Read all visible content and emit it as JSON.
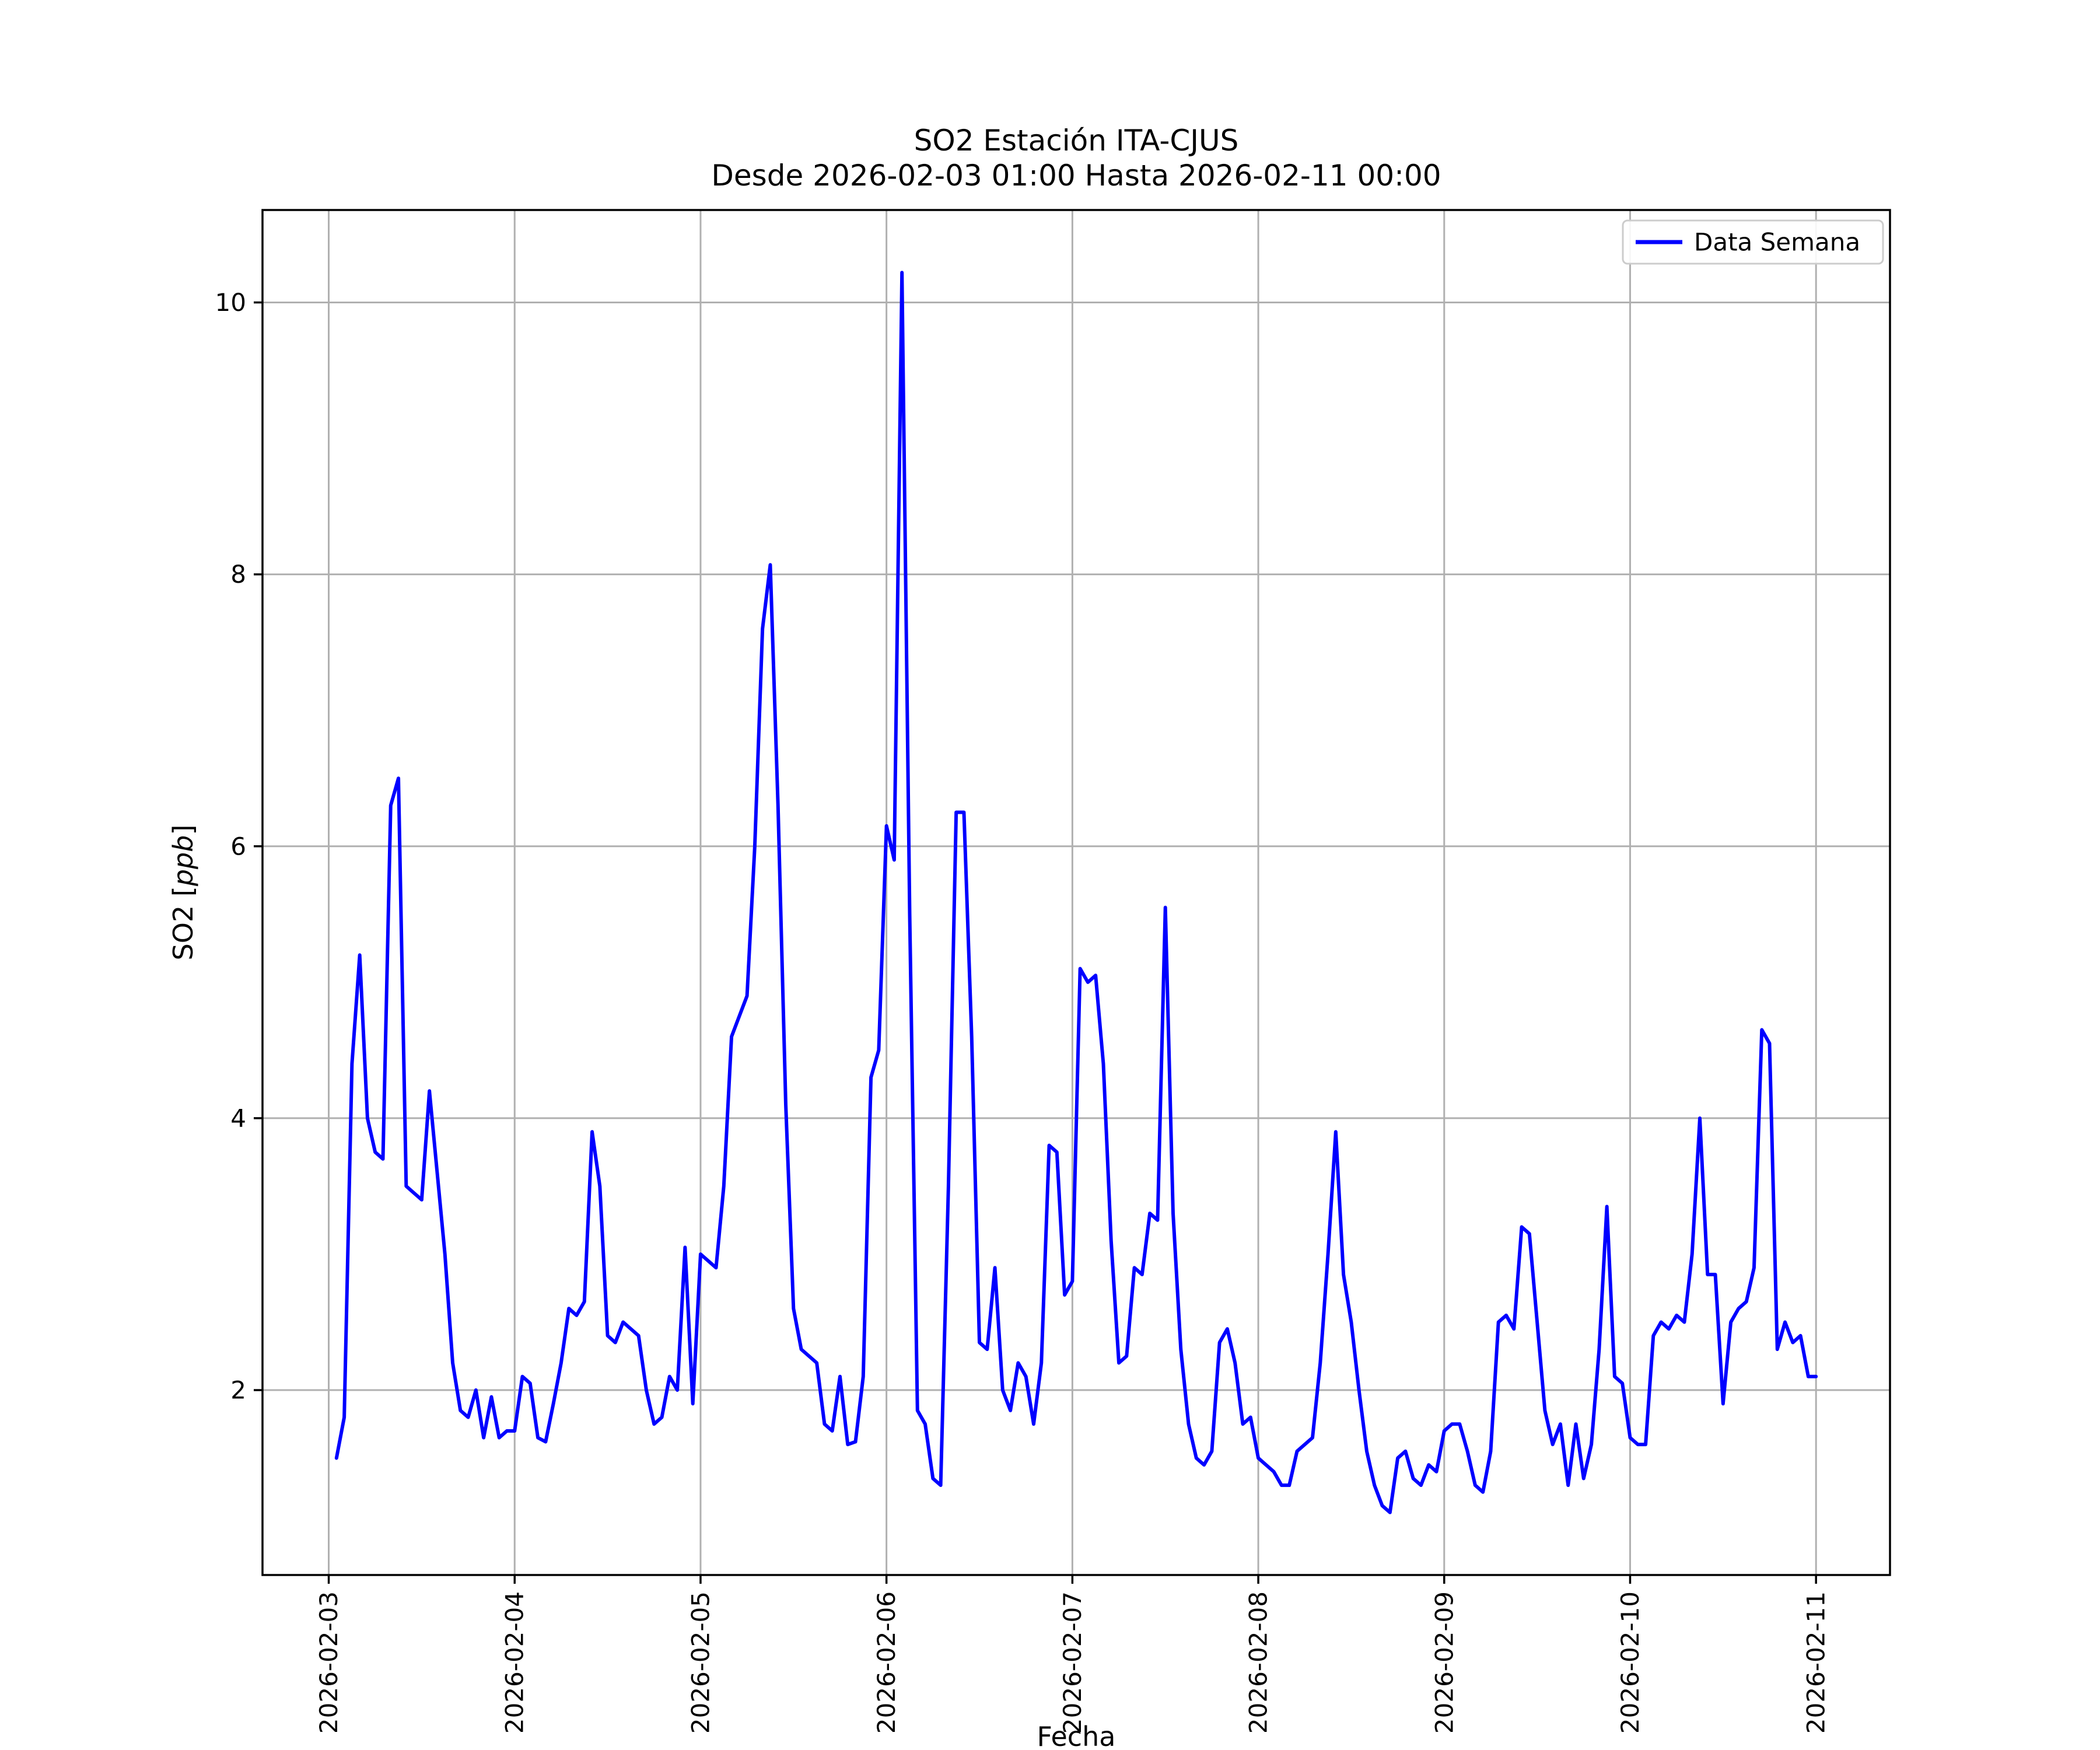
{
  "title": {
    "line1": "SO2 Estación ITA-CJUS",
    "line2": "Desde 2026-02-03 01:00 Hasta 2026-02-11 00:00"
  },
  "legend": {
    "label": "Data Semana"
  },
  "chart_data": {
    "type": "line",
    "title": "SO2 Estación ITA-CJUS — Desde 2026-02-03 01:00 Hasta 2026-02-11 00:00",
    "xlabel": "Fecha",
    "ylabel": "SO2 [ppb]",
    "ylabel_prefix": "SO2 [",
    "ylabel_italic": "ppb",
    "ylabel_suffix": "]",
    "x_start": "2026-02-03 01:00",
    "x_end": "2026-02-11 00:00",
    "x_step_hours": 1,
    "first_point_offset_hours": 1,
    "x_tick_labels": [
      "2026-02-03",
      "2026-02-04",
      "2026-02-05",
      "2026-02-06",
      "2026-02-07",
      "2026-02-08",
      "2026-02-09",
      "2026-02-10",
      "2026-02-11"
    ],
    "y_ticks": [
      2,
      4,
      6,
      8,
      10
    ],
    "ylim": [
      0.64,
      10.68
    ],
    "grid": true,
    "legend_position": "upper right",
    "series": [
      {
        "name": "Data Semana",
        "color": "#0000ff",
        "values": [
          1.5,
          1.8,
          4.4,
          5.2,
          4.0,
          3.75,
          3.7,
          6.3,
          6.5,
          3.5,
          3.45,
          3.4,
          4.2,
          3.6,
          3.0,
          2.2,
          1.85,
          1.8,
          2.0,
          1.65,
          1.95,
          1.65,
          1.7,
          1.7,
          2.1,
          2.05,
          1.65,
          1.62,
          1.9,
          2.2,
          2.6,
          2.55,
          2.65,
          3.9,
          3.5,
          2.4,
          2.35,
          2.5,
          2.45,
          2.4,
          2.0,
          1.75,
          1.8,
          2.1,
          2.0,
          3.05,
          1.9,
          3.0,
          2.95,
          2.9,
          3.5,
          4.6,
          4.75,
          4.9,
          6.0,
          7.6,
          8.07,
          6.3,
          4.1,
          2.6,
          2.3,
          2.25,
          2.2,
          1.75,
          1.7,
          2.1,
          1.6,
          1.62,
          2.1,
          4.3,
          4.5,
          6.15,
          5.9,
          10.22,
          5.5,
          1.85,
          1.75,
          1.35,
          1.3,
          3.5,
          6.25,
          6.25,
          4.6,
          2.35,
          2.3,
          2.9,
          2.0,
          1.85,
          2.2,
          2.1,
          1.75,
          2.2,
          3.8,
          3.75,
          2.7,
          2.8,
          5.1,
          5.0,
          5.05,
          4.4,
          3.1,
          2.2,
          2.25,
          2.9,
          2.85,
          3.3,
          3.25,
          5.55,
          3.3,
          2.3,
          1.75,
          1.5,
          1.45,
          1.55,
          2.35,
          2.45,
          2.2,
          1.75,
          1.8,
          1.5,
          1.45,
          1.4,
          1.3,
          1.3,
          1.55,
          1.6,
          1.65,
          2.2,
          3.0,
          3.9,
          2.85,
          2.5,
          2.0,
          1.55,
          1.3,
          1.15,
          1.1,
          1.5,
          1.55,
          1.35,
          1.3,
          1.45,
          1.4,
          1.7,
          1.75,
          1.75,
          1.55,
          1.3,
          1.25,
          1.55,
          2.5,
          2.55,
          2.45,
          3.2,
          3.15,
          2.5,
          1.85,
          1.6,
          1.75,
          1.3,
          1.75,
          1.35,
          1.6,
          2.3,
          3.35,
          2.1,
          2.05,
          1.65,
          1.6,
          1.6,
          2.4,
          2.5,
          2.45,
          2.55,
          2.5,
          3.0,
          4.0,
          2.85,
          2.85,
          1.9,
          2.5,
          2.6,
          2.65,
          2.9,
          4.65,
          4.55,
          2.3,
          2.5,
          2.35,
          2.4,
          2.1,
          2.1
        ]
      }
    ]
  }
}
